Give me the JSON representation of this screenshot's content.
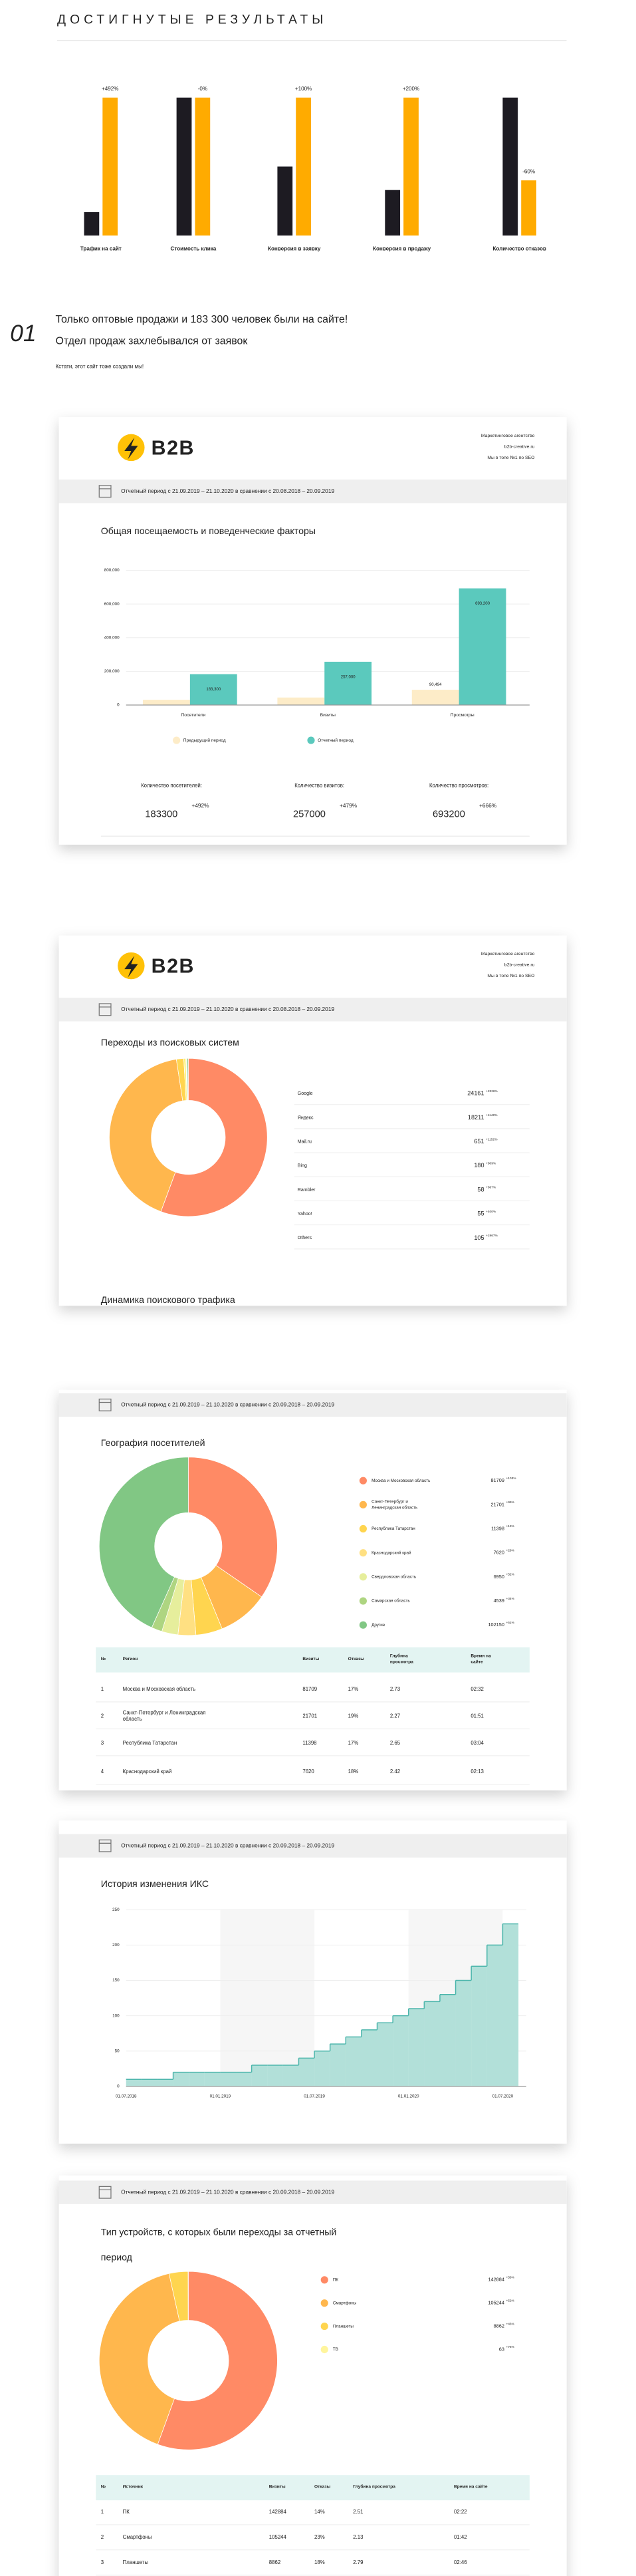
{
  "results": {
    "title": "ДОСТИГНУТЫЕ РЕЗУЛЬТАТЫ",
    "chart": {
      "type": "bar",
      "categories": [
        "Трафик на сайт",
        "Стоимость клика",
        "Конверсия в заявку",
        "Конверсия в продажу",
        "Количество отказов"
      ],
      "series": [
        {
          "color": "#1d1b22",
          "values": [
            17,
            100,
            50,
            33,
            100
          ]
        },
        {
          "color": "#ffab00",
          "values": [
            100,
            100,
            100,
            100,
            40
          ]
        }
      ],
      "change_labels": [
        "+492%",
        "-0%",
        "+100%",
        "+200%",
        "-60%"
      ]
    }
  },
  "case": {
    "number": "01",
    "title_lines": [
      "Только оптовые продажи и 183 300 человек были на сайте!",
      "Отдел продаж захлебывался от заявок"
    ],
    "subtitle": "Кстати, этот сайт тоже создали мы!"
  },
  "report_header": {
    "logo": "B2B",
    "agency_lines": [
      "Маркетинговое агентство",
      "b2b-creative.ru",
      "Мы в топе №1 по SEO"
    ]
  },
  "cards": [
    {
      "period": "Отчетный период с 21.09.2019 – 21.10.2020 в сравнении с 20.08.2018 – 20.09.2019",
      "title": "Общая посещаемость и поведенческие факторы",
      "chart": {
        "type": "bar",
        "categories": [
          "Посетители",
          "Визиты",
          "Просмотры"
        ],
        "series": [
          {
            "name": "Предыдущий период",
            "color": "#fdecc8",
            "values": [
              30963,
              44380,
              90494
            ],
            "value_labels": [
              null,
              null,
              "90,494"
            ]
          },
          {
            "name": "Отчетный период",
            "color": "#5bc9bd",
            "values": [
              183300,
              257000,
              693200
            ],
            "value_labels": [
              "183,300",
              "257,000",
              "693,200"
            ]
          }
        ],
        "ylim": [
          0,
          800000
        ],
        "yticks": [
          0,
          {
            "value": 200000,
            "label": "200,000"
          },
          {
            "value": 400000,
            "label": "400,000"
          },
          {
            "value": 600000,
            "label": "600,000"
          },
          {
            "value": 800000,
            "label": "800,000"
          }
        ],
        "grid": true
      },
      "stats": [
        {
          "label": "Количество посетителей:",
          "value": 183300,
          "change": "+492%"
        },
        {
          "label": "Количество визитов:",
          "value": 257000,
          "change": "+479%"
        },
        {
          "label": "Количество просмотров:",
          "value": 693200,
          "change": "+666%"
        }
      ]
    },
    {
      "period": "Отчетный период с 21.09.2019 – 21.10.2020 в сравнении с 20.08.2018 – 20.09.2019",
      "title": "Переходы из поисковых систем",
      "chart": {
        "type": "pie",
        "categories": [
          "Google",
          "Яндекс",
          "Mail.ru",
          "Bing",
          "Rambler",
          "Yahoo!",
          "Others"
        ],
        "values": [
          24161,
          18211,
          651,
          180,
          58,
          55,
          105
        ],
        "change_labels": [
          "+2326%",
          "+1148%",
          "+1152%",
          "+809%",
          "+867%",
          "+400%",
          "+1967%"
        ],
        "colors": [
          "#ff8a65",
          "#ffb74d",
          "#ffd54f",
          "#fff176",
          "#dce775",
          "#aed581",
          "#81c784"
        ]
      },
      "next_title": "Динамика поискового трафика"
    },
    {
      "period": "Отчетный период с 21.09.2019 – 21.10.2020 в сравнении с 20.09.2018 – 20.09.2019",
      "title": "География посетителей",
      "chart": {
        "type": "pie",
        "categories": [
          [
            "Москва и Московская область"
          ],
          [
            "Санкт-Петербург и",
            "Ленинградская область"
          ],
          [
            "Республика Татарстан"
          ],
          [
            "Краснодарский край"
          ],
          [
            "Свердловская область"
          ],
          [
            "Самарская область"
          ],
          [
            "Другие"
          ]
        ],
        "values": [
          81709,
          21701,
          11398,
          7620,
          6950,
          4539,
          102150
        ],
        "change_labels": [
          "+103%",
          "+99%",
          "+13%",
          "+29%",
          "+52%",
          "+34%",
          "+51%"
        ],
        "colors": [
          "#ff8a65",
          "#ffb74d",
          "#ffd54f",
          "#ffe082",
          "#e6ee9c",
          "#aed581",
          "#81c784"
        ]
      },
      "table": {
        "header": [
          "№",
          "Регион",
          "Визиты",
          "Отказы",
          [
            "Глубина",
            "просмотра"
          ],
          [
            "Время на",
            "сайте"
          ]
        ],
        "rows": [
          [
            1,
            [
              "Москва и Московская область"
            ],
            81709,
            "17%",
            2.73,
            "02:32"
          ],
          [
            2,
            [
              "Санкт-Петербург и Ленинградская",
              "область"
            ],
            21701,
            "19%",
            2.27,
            "01:51"
          ],
          [
            3,
            [
              "Республика Татарстан"
            ],
            11398,
            "17%",
            2.65,
            "03:04"
          ],
          [
            4,
            [
              "Краснодарский край"
            ],
            7620,
            "18%",
            2.42,
            "02:13"
          ]
        ]
      }
    },
    {
      "period": "Отчетный период с 21.09.2019 – 21.10.2020 в сравнении с 20.09.2018 – 20.09.2019",
      "title": "История изменения ИКС",
      "chart": {
        "type": "area",
        "color": "#b2e0d9",
        "line_color": "#4db6ac",
        "categories": [
          "01.07.2018",
          null,
          null,
          null,
          null,
          null,
          "01.01.2019",
          null,
          null,
          null,
          null,
          null,
          "01.07.2019",
          null,
          null,
          null,
          null,
          null,
          "01.01.2020",
          null,
          null,
          null,
          null,
          null,
          "01.07.2020"
        ],
        "values": [
          10,
          10,
          10,
          20,
          20,
          20,
          20,
          20,
          30,
          30,
          30,
          40,
          50,
          60,
          70,
          80,
          90,
          100,
          110,
          120,
          130,
          150,
          170,
          200,
          230
        ],
        "ylim": [
          0,
          250
        ],
        "yticks": [
          0,
          50,
          100,
          150,
          200,
          250
        ],
        "grid": true
      }
    },
    {
      "period": "Отчетный период с 21.09.2019 – 21.10.2020 в сравнении с 20.09.2018 – 20.09.2019",
      "title_lines": [
        "Тип устройств, с которых были переходы за отчетный",
        "период"
      ],
      "chart": {
        "type": "pie",
        "categories": [
          [
            "ПК"
          ],
          [
            "Смартфоны"
          ],
          [
            "Планшеты"
          ],
          [
            "ТВ"
          ]
        ],
        "values": [
          142884,
          105244,
          8862,
          63
        ],
        "change_labels": [
          "+58%",
          "+52%",
          "+46%",
          "+76%"
        ],
        "colors": [
          "#ff8a65",
          "#ffb74d",
          "#ffd54f",
          "#fff59d"
        ]
      },
      "table": {
        "header": [
          "№",
          "Источник",
          "Визиты",
          "Отказы",
          "Глубина просмотра",
          "Время на сайте"
        ],
        "rows": [
          [
            1,
            [
              "ПК"
            ],
            142884,
            "14%",
            2.51,
            "02:22"
          ],
          [
            2,
            [
              "Смартфоны"
            ],
            105244,
            "23%",
            2.13,
            "01:42"
          ],
          [
            3,
            [
              "Планшеты"
            ],
            8862,
            "18%",
            2.79,
            "02:46"
          ]
        ]
      }
    }
  ]
}
